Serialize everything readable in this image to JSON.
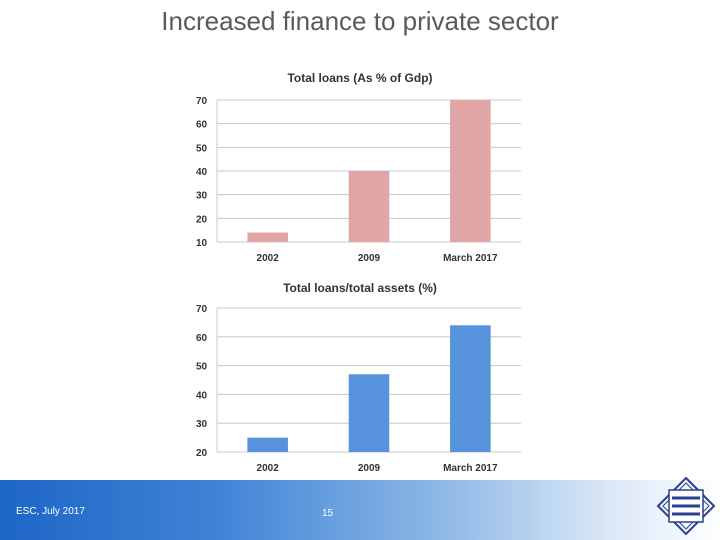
{
  "slide": {
    "title": "Increased finance to private sector",
    "footer_left": "ESC, July 2017",
    "page_number": "15"
  },
  "colors": {
    "top_bars": "#e1a5a5",
    "bottom_bars": "#5792dc",
    "grid": "#c8c8c8",
    "footer_blue": "#1e66c6",
    "logo": "#2a3f8f"
  },
  "chart_data": [
    {
      "type": "bar",
      "title": "Total loans (As % of Gdp)",
      "categories": [
        "2002",
        "2009",
        "March 2017"
      ],
      "values": [
        14,
        40,
        70
      ],
      "ylim": [
        10,
        70
      ],
      "yticks": [
        "70",
        "60",
        "50",
        "40",
        "30",
        "20",
        "10"
      ],
      "grid": true
    },
    {
      "type": "bar",
      "title": "Total loans/total assets (%)",
      "categories": [
        "2002",
        "2009",
        "March 2017"
      ],
      "values": [
        25,
        47,
        64
      ],
      "ylim": [
        20,
        70
      ],
      "yticks": [
        "70",
        "60",
        "50",
        "40",
        "30",
        "20"
      ],
      "grid": true
    }
  ]
}
